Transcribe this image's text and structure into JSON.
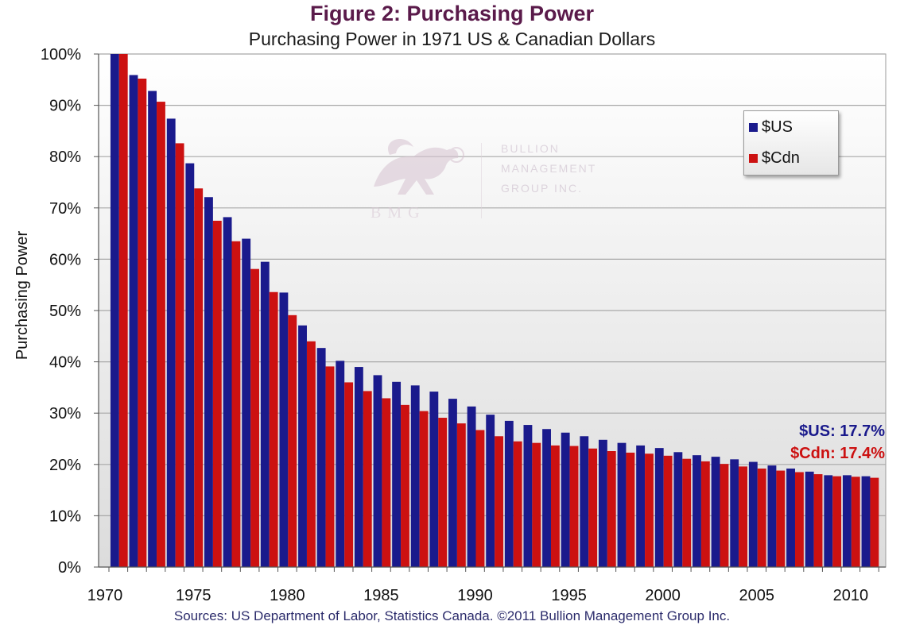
{
  "header": {
    "title": "Figure 2: Purchasing Power",
    "subtitle": "Purchasing Power in 1971 US & Canadian Dollars"
  },
  "footer": {
    "source": "Sources: US Department of Labor, Statistics Canada. ©2011 Bullion Management Group Inc."
  },
  "watermark": {
    "line1": "BULLION",
    "line2": "MANAGEMENT",
    "line3": "GROUP INC.",
    "initials": "BMG"
  },
  "annotations": {
    "us": "$US: 17.7%",
    "cdn": "$Cdn: 17.4%"
  },
  "legend": {
    "placement": "top-right",
    "items": [
      {
        "label": "$US",
        "color": "#1a1a8c"
      },
      {
        "label": "$Cdn",
        "color": "#cc1111"
      }
    ]
  },
  "chart_data": {
    "type": "bar",
    "title": "Figure 2: Purchasing Power",
    "subtitle": "Purchasing Power in 1971 US & Canadian Dollars",
    "xlabel": "",
    "ylabel": "Purchasing Power",
    "ylim": [
      0,
      100
    ],
    "yticks": [
      0,
      10,
      20,
      30,
      40,
      50,
      60,
      70,
      80,
      90,
      100
    ],
    "ytick_labels": [
      "0%",
      "10%",
      "20%",
      "30%",
      "40%",
      "50%",
      "60%",
      "70%",
      "80%",
      "90%",
      "100%"
    ],
    "xtick_labels": [
      "1970",
      "1975",
      "1980",
      "1985",
      "1990",
      "1995",
      "2000",
      "2005",
      "2010"
    ],
    "grid": true,
    "categories": [
      1971,
      1972,
      1973,
      1974,
      1975,
      1976,
      1977,
      1978,
      1979,
      1980,
      1981,
      1982,
      1983,
      1984,
      1985,
      1986,
      1987,
      1988,
      1989,
      1990,
      1991,
      1992,
      1993,
      1994,
      1995,
      1996,
      1997,
      1998,
      1999,
      2000,
      2001,
      2002,
      2003,
      2004,
      2005,
      2006,
      2007,
      2008,
      2009,
      2010,
      2011
    ],
    "series": [
      {
        "name": "$US",
        "color": "#1a1a8c",
        "values": [
          100,
          95.9,
          92.8,
          87.4,
          78.7,
          72.1,
          68.2,
          64.0,
          59.5,
          53.5,
          47.1,
          42.7,
          40.2,
          39.0,
          37.4,
          36.1,
          35.4,
          34.2,
          32.8,
          31.3,
          29.7,
          28.5,
          27.7,
          26.9,
          26.2,
          25.5,
          24.8,
          24.2,
          23.7,
          23.2,
          22.4,
          21.8,
          21.5,
          21.0,
          20.5,
          19.8,
          19.2,
          18.6,
          17.9,
          17.9,
          17.7
        ]
      },
      {
        "name": "$Cdn",
        "color": "#cc1111",
        "values": [
          100,
          95.2,
          90.7,
          82.6,
          73.8,
          67.5,
          63.5,
          58.1,
          53.6,
          49.1,
          44.0,
          39.1,
          36.0,
          34.3,
          32.9,
          31.6,
          30.4,
          29.1,
          28.0,
          26.7,
          25.5,
          24.5,
          24.2,
          23.7,
          23.6,
          23.1,
          22.6,
          22.3,
          22.1,
          21.7,
          21.1,
          20.6,
          20.1,
          19.6,
          19.2,
          18.8,
          18.5,
          18.1,
          17.7,
          17.6,
          17.4
        ]
      }
    ]
  }
}
